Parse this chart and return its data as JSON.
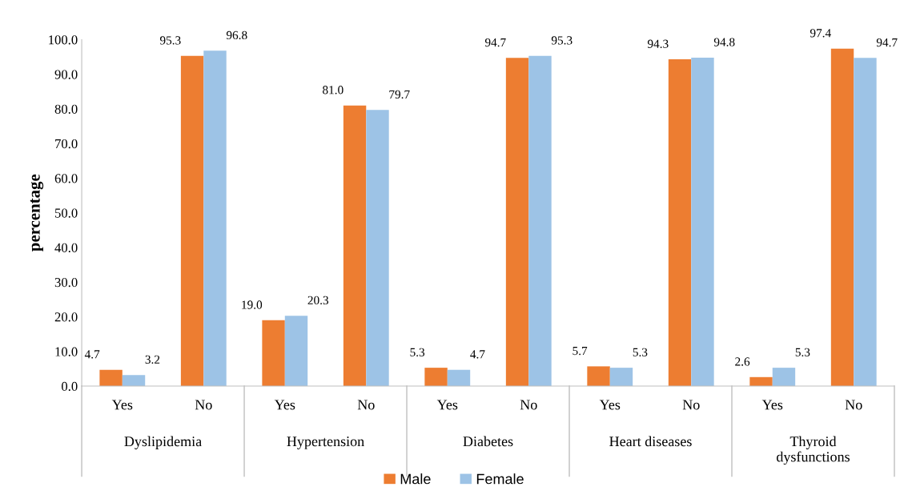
{
  "chart_data": {
    "type": "bar",
    "ylabel": "percentage",
    "categories": [
      "Yes",
      "No",
      "Yes",
      "No",
      "Yes",
      "No",
      "Yes",
      "No",
      "Yes",
      "No"
    ],
    "annotations": [
      "Dyslipidemia",
      "Hypertension",
      "Diabetes",
      "Heart diseases",
      "Thyroid\ndysfunctions"
    ],
    "series": [
      {
        "name": "Male",
        "color": "#ed7d31",
        "values": [
          4.7,
          95.3,
          19.0,
          81.0,
          5.3,
          94.7,
          5.7,
          94.3,
          2.6,
          97.4
        ],
        "value_labels": [
          "4.7",
          "95.3",
          "19.0",
          "81.0",
          "5.3",
          "94.7",
          "5.7",
          "94.3",
          "2.6",
          "97.4"
        ]
      },
      {
        "name": "Female",
        "color": "#9dc3e6",
        "values": [
          3.2,
          96.8,
          20.3,
          79.7,
          4.7,
          95.3,
          5.3,
          94.8,
          5.3,
          94.7
        ],
        "value_labels": [
          "3.2",
          "96.8",
          "20.3",
          "79.7",
          "4.7",
          "95.3",
          "5.3",
          "94.8",
          "5.3",
          "94.7"
        ]
      }
    ],
    "ylim": [
      0,
      100
    ],
    "yticks": [
      {
        "value": 0,
        "label": "0.0"
      },
      {
        "value": 10,
        "label": "10.0"
      },
      {
        "value": 20,
        "label": "20.0"
      },
      {
        "value": 30,
        "label": "30.0"
      },
      {
        "value": 40,
        "label": "40.0"
      },
      {
        "value": 50,
        "label": "50.0"
      },
      {
        "value": 60,
        "label": "60.0"
      },
      {
        "value": 70,
        "label": "70.0"
      },
      {
        "value": 80,
        "label": "80.0"
      },
      {
        "value": 90,
        "label": "90.0"
      },
      {
        "value": 100,
        "label": "100.0"
      }
    ],
    "grid": false,
    "legend": "bottom"
  }
}
